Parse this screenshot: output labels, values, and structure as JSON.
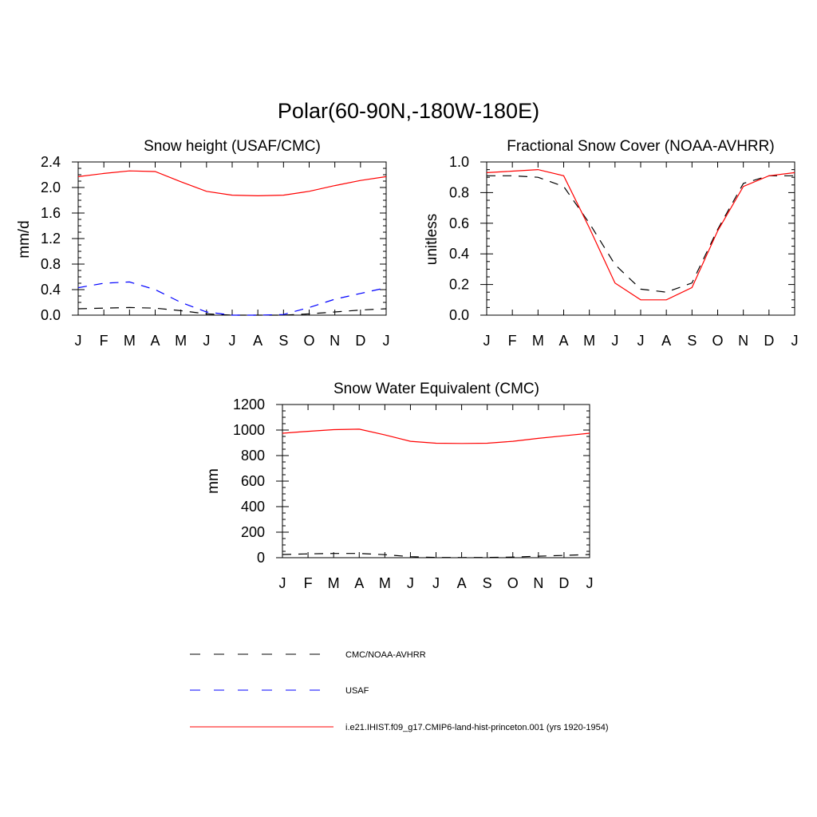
{
  "figure": {
    "title": "Polar(60-90N,-180W-180E)"
  },
  "legend": [
    {
      "label": "CMC/NOAA-AVHRR",
      "color": "#000000",
      "dash": "dashed"
    },
    {
      "label": "USAF",
      "color": "#0000ff",
      "dash": "dashed"
    },
    {
      "label": "i.e21.IHIST.f09_g17.CMIP6-land-hist-princeton.001 (yrs 1920-1954)",
      "color": "#ff0000",
      "dash": "solid"
    }
  ],
  "chart_data": [
    {
      "type": "line",
      "title": "Snow height (USAF/CMC)",
      "xlabel": "",
      "ylabel": "mm/d",
      "categories": [
        "J",
        "F",
        "M",
        "A",
        "M",
        "J",
        "J",
        "A",
        "S",
        "O",
        "N",
        "D",
        "J"
      ],
      "ylim": [
        0,
        2.4
      ],
      "yticks": [
        "0.0",
        "0.4",
        "0.8",
        "1.2",
        "1.6",
        "2.0",
        "2.4"
      ],
      "series": [
        {
          "name": "CMC/NOAA-AVHRR",
          "color": "#000000",
          "dash": "dashed",
          "values": [
            0.1,
            0.11,
            0.12,
            0.11,
            0.07,
            0.02,
            0.0,
            0.0,
            0.0,
            0.02,
            0.05,
            0.08,
            0.1
          ]
        },
        {
          "name": "USAF",
          "color": "#0000ff",
          "dash": "dashed",
          "values": [
            0.43,
            0.5,
            0.52,
            0.4,
            0.2,
            0.05,
            0.0,
            0.0,
            0.01,
            0.12,
            0.25,
            0.34,
            0.43
          ]
        },
        {
          "name": "i.e21.IHIST.f09_g17.CMIP6-land-hist-princeton.001 (yrs 1920-1954)",
          "color": "#ff0000",
          "dash": "solid",
          "values": [
            2.17,
            2.22,
            2.26,
            2.25,
            2.09,
            1.94,
            1.88,
            1.87,
            1.88,
            1.94,
            2.03,
            2.11,
            2.17
          ]
        }
      ]
    },
    {
      "type": "line",
      "title": "Fractional Snow Cover (NOAA-AVHRR)",
      "xlabel": "",
      "ylabel": "unitless",
      "categories": [
        "J",
        "F",
        "M",
        "A",
        "M",
        "J",
        "J",
        "A",
        "S",
        "O",
        "N",
        "D",
        "J"
      ],
      "ylim": [
        0,
        1.0
      ],
      "yticks": [
        "0.0",
        "0.2",
        "0.4",
        "0.6",
        "0.8",
        "1.0"
      ],
      "series": [
        {
          "name": "CMC/NOAA-AVHRR",
          "color": "#000000",
          "dash": "dashed",
          "values": [
            0.91,
            0.91,
            0.9,
            0.84,
            0.6,
            0.33,
            0.17,
            0.15,
            0.21,
            0.56,
            0.86,
            0.91,
            0.91
          ]
        },
        {
          "name": "i.e21.IHIST.f09_g17.CMIP6-land-hist-princeton.001 (yrs 1920-1954)",
          "color": "#ff0000",
          "dash": "solid",
          "values": [
            0.93,
            0.94,
            0.95,
            0.91,
            0.57,
            0.21,
            0.1,
            0.1,
            0.18,
            0.55,
            0.84,
            0.91,
            0.93
          ]
        }
      ]
    },
    {
      "type": "line",
      "title": "Snow Water Equivalent (CMC)",
      "xlabel": "",
      "ylabel": "mm",
      "categories": [
        "J",
        "F",
        "M",
        "A",
        "M",
        "J",
        "J",
        "A",
        "S",
        "O",
        "N",
        "D",
        "J"
      ],
      "ylim": [
        0,
        1200
      ],
      "yticks": [
        "0",
        "200",
        "400",
        "600",
        "800",
        "1000",
        "1200"
      ],
      "series": [
        {
          "name": "CMC/NOAA-AVHRR",
          "color": "#000000",
          "dash": "dashed",
          "values": [
            25,
            30,
            33,
            33,
            24,
            8,
            2,
            1,
            2,
            5,
            12,
            18,
            25
          ]
        },
        {
          "name": "i.e21.IHIST.f09_g17.CMIP6-land-hist-princeton.001 (yrs 1920-1954)",
          "color": "#ff0000",
          "dash": "solid",
          "values": [
            975,
            990,
            1003,
            1007,
            962,
            912,
            897,
            895,
            897,
            912,
            935,
            955,
            975
          ]
        }
      ]
    }
  ]
}
